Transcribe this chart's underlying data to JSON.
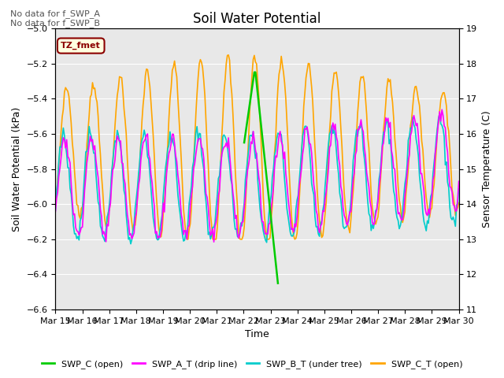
{
  "title": "Soil Water Potential",
  "ylabel_left": "Soil Water Potential (kPa)",
  "ylabel_right": "Sensor Temperature (C)",
  "xlabel": "Time",
  "ylim_left": [
    -6.6,
    -5.0
  ],
  "ylim_right": [
    11.0,
    19.0
  ],
  "annotations": [
    "No data for f_SWP_A",
    "No data for f_SWP_B"
  ],
  "legend_label_box": "TZ_fmet",
  "x_tick_labels": [
    "Mar 15",
    "Mar 16",
    "Mar 17",
    "Mar 18",
    "Mar 19",
    "Mar 20",
    "Mar 21",
    "Mar 22",
    "Mar 23",
    "Mar 24",
    "Mar 25",
    "Mar 26",
    "Mar 27",
    "Mar 28",
    "Mar 29",
    "Mar 30"
  ],
  "background_color": "#e8e8e8",
  "colors": {
    "SWP_C": "#00cc00",
    "SWP_A_T": "#ff00ff",
    "SWP_B_T": "#00cccc",
    "SWP_C_T": "#ffa500"
  },
  "legend_entries": [
    {
      "label": "SWP_C (open)",
      "color": "#00cc00"
    },
    {
      "label": "SWP_A_T (drip line)",
      "color": "#ff00ff"
    },
    {
      "label": "SWP_B_T (under tree)",
      "color": "#00cccc"
    },
    {
      "label": "SWP_C_T (open)",
      "color": "#ffa500"
    }
  ]
}
